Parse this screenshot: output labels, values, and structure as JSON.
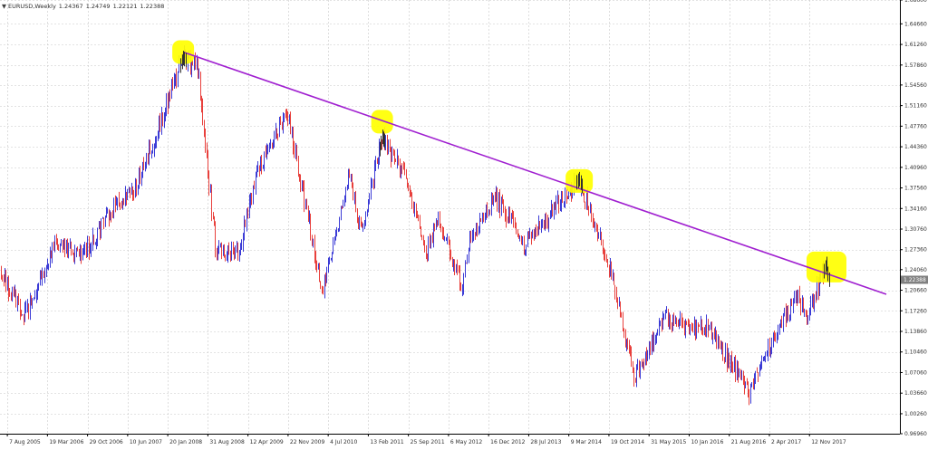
{
  "header": {
    "symbol": "EURUSD,Weekly",
    "open": "1.24367",
    "high": "1.24749",
    "low": "1.22121",
    "close": "1.22388"
  },
  "colors": {
    "bull_candle": "#3b3bd6",
    "bear_candle": "#e8403c",
    "trendline": "#a020d0",
    "highlight": "#ffff00",
    "grid": "#c8c8c8",
    "current_price_box": "#808080"
  },
  "chart_data": {
    "type": "line",
    "title": "",
    "xlabel": "",
    "ylabel": "",
    "ylim": [
      0.9696,
      1.686
    ],
    "grid": true,
    "y_ticks": [
      "1.68600",
      "1.64660",
      "1.61260",
      "1.57860",
      "1.54560",
      "1.51160",
      "1.47760",
      "1.44360",
      "1.40960",
      "1.37560",
      "1.34160",
      "1.30760",
      "1.27360",
      "1.24060",
      "1.20660",
      "1.17260",
      "1.13860",
      "1.10460",
      "1.07060",
      "1.03660",
      "1.00260",
      "0.96960"
    ],
    "x_ticks": [
      "7 Aug 2005",
      "19 Mar 2006",
      "29 Oct 2006",
      "10 Jun 2007",
      "20 Jan 2008",
      "31 Aug 2008",
      "12 Apr 2009",
      "22 Nov 2009",
      "4 Jul 2010",
      "13 Feb 2011",
      "25 Sep 2011",
      "6 May 2012",
      "16 Dec 2012",
      "28 Jul 2013",
      "9 Mar 2014",
      "19 Oct 2014",
      "31 May 2015",
      "10 Jan 2016",
      "21 Aug 2016",
      "2 Apr 2017",
      "12 Nov 2017"
    ],
    "current_price": "1.22388",
    "series": [
      {
        "x": [
          "7 Aug 2005",
          "19 Mar 2006",
          "29 Oct 2006",
          "10 Jun 2007",
          "20 Jan 2008",
          "31 Aug 2008",
          "12 Apr 2009",
          "22 Nov 2009",
          "4 Jul 2010",
          "13 Feb 2011",
          "25 Sep 2011",
          "6 May 2012",
          "16 Dec 2012",
          "28 Jul 2013",
          "9 Mar 2014",
          "19 Oct 2014",
          "31 May 2015",
          "10 Jan 2016",
          "21 Aug 2016",
          "2 Apr 2017",
          "12 Nov 2017"
        ],
        "values": [
          1.215,
          1.26,
          1.29,
          1.35,
          1.54,
          1.42,
          1.36,
          1.45,
          1.3,
          1.41,
          1.37,
          1.23,
          1.32,
          1.33,
          1.39,
          1.26,
          1.1,
          1.09,
          1.11,
          1.07,
          1.18
        ]
      }
    ],
    "candle_path": [
      [
        "2005-07-01",
        1.24
      ],
      [
        "2005-11-15",
        1.165
      ],
      [
        "2006-05-01",
        1.28
      ],
      [
        "2006-10-15",
        1.27
      ],
      [
        "2007-03-01",
        1.33
      ],
      [
        "2007-07-15",
        1.37
      ],
      [
        "2007-12-01",
        1.47
      ],
      [
        "2008-04-15",
        1.59
      ],
      [
        "2008-07-15",
        1.57
      ],
      [
        "2008-10-20",
        1.27
      ],
      [
        "2009-03-01",
        1.27
      ],
      [
        "2009-06-01",
        1.4
      ],
      [
        "2009-11-25",
        1.5
      ],
      [
        "2010-06-07",
        1.2
      ],
      [
        "2010-11-01",
        1.4
      ],
      [
        "2011-01-10",
        1.3
      ],
      [
        "2011-05-01",
        1.46
      ],
      [
        "2011-09-01",
        1.4
      ],
      [
        "2012-01-10",
        1.27
      ],
      [
        "2012-03-15",
        1.33
      ],
      [
        "2012-07-24",
        1.21
      ],
      [
        "2012-09-15",
        1.3
      ],
      [
        "2013-02-01",
        1.36
      ],
      [
        "2013-07-10",
        1.28
      ],
      [
        "2014-05-06",
        1.39
      ],
      [
        "2014-10-15",
        1.26
      ],
      [
        "2015-03-15",
        1.06
      ],
      [
        "2015-08-24",
        1.16
      ],
      [
        "2016-05-01",
        1.14
      ],
      [
        "2016-12-20",
        1.04
      ],
      [
        "2017-09-01",
        1.2
      ],
      [
        "2017-11-01",
        1.16
      ],
      [
        "2018-02-15",
        1.25
      ],
      [
        "2018-02-26",
        1.224
      ]
    ],
    "trendline": {
      "start": [
        "2008-04-15",
        1.6
      ],
      "end": [
        "2019-01-15",
        1.2
      ]
    },
    "annotations": [
      {
        "date": "2008-04-15",
        "price": 1.6
      },
      {
        "date": "2011-05-01",
        "price": 1.485
      },
      {
        "date": "2014-05-06",
        "price": 1.387
      },
      {
        "date": "2018-02-15",
        "price": 1.245
      }
    ]
  }
}
